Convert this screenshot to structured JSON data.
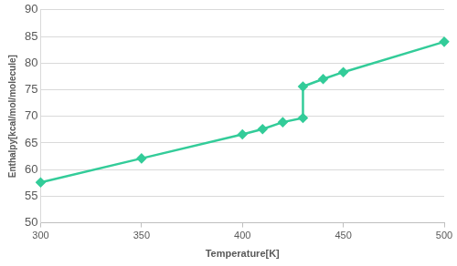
{
  "chart_data": {
    "type": "line",
    "x_label": "Temperature[K]",
    "y_label": "Enthalpy[kcal/mol/molecule]",
    "x": [
      300,
      350,
      400,
      410,
      420,
      430,
      430,
      440,
      450,
      500
    ],
    "values": [
      57.6,
      62.1,
      66.6,
      67.6,
      68.9,
      69.7,
      75.6,
      77.0,
      78.3,
      84.0
    ],
    "color": "#33cc99",
    "marker": "diamond",
    "line_style": "solid",
    "xlim": [
      300,
      500
    ],
    "xticks": [
      300,
      350,
      400,
      450,
      500
    ],
    "ylim": [
      50,
      90
    ],
    "yticks": [
      50,
      55,
      60,
      65,
      70,
      75,
      80,
      85,
      90
    ],
    "grid": true
  }
}
